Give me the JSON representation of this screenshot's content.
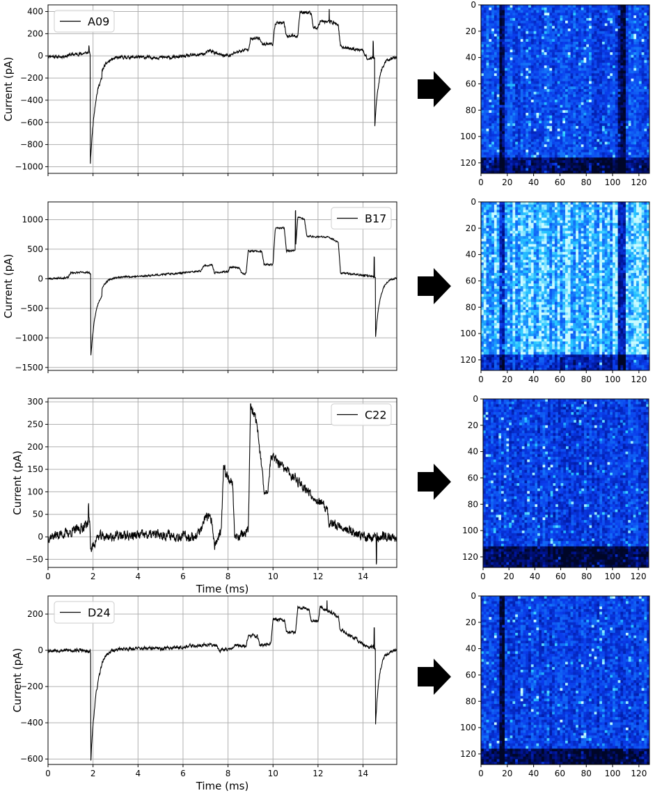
{
  "colors": {
    "trace": "#000000",
    "grid": "#b0b0b0",
    "arrow": "#000000",
    "heatmap_low": "#000a3c",
    "heatmap_mid": "#0a3cf0",
    "heatmap_high": "#3cdcff"
  },
  "arrow_icon": "right-arrow-icon",
  "chart_data": [
    {
      "id": "A09",
      "type": "line",
      "legend": "A09",
      "legend_position": "upper-left",
      "xlabel": "",
      "ylabel": "Current (pA)",
      "xlim": [
        0,
        15.5
      ],
      "ylim": [
        -1060,
        460
      ],
      "xticks": [
        0,
        2,
        4,
        6,
        8,
        10,
        12,
        14
      ],
      "show_xtick_labels": false,
      "yticks": [
        -1000,
        -800,
        -600,
        -400,
        -200,
        0,
        200,
        400
      ],
      "ytick_labels": [
        "−1000",
        "−800",
        "−600",
        "−400",
        "−200",
        "0",
        "200",
        "400"
      ],
      "grid": true,
      "noise": 12,
      "segments": [
        [
          0.0,
          0
        ],
        [
          0.5,
          -10
        ],
        [
          1.0,
          10
        ],
        [
          1.5,
          20
        ],
        [
          1.8,
          30
        ],
        [
          2.4,
          -80
        ],
        [
          2.4,
          -15
        ],
        [
          3.0,
          -10
        ],
        [
          5.5,
          -15
        ],
        [
          6.5,
          5
        ],
        [
          7.0,
          20
        ],
        [
          7.2,
          50
        ],
        [
          7.6,
          10
        ],
        [
          8.1,
          0
        ],
        [
          8.3,
          30
        ],
        [
          8.9,
          60
        ],
        [
          9.0,
          150
        ],
        [
          9.4,
          160
        ],
        [
          9.5,
          110
        ],
        [
          10.0,
          110
        ],
        [
          10.1,
          300
        ],
        [
          10.5,
          290
        ],
        [
          10.6,
          180
        ],
        [
          11.1,
          180
        ],
        [
          11.2,
          400
        ],
        [
          11.7,
          380
        ],
        [
          11.8,
          250
        ],
        [
          12.0,
          260
        ],
        [
          12.1,
          320
        ],
        [
          12.7,
          300
        ],
        [
          12.9,
          280
        ],
        [
          13.0,
          80
        ],
        [
          14.0,
          50
        ],
        [
          14.2,
          -30
        ],
        [
          14.4,
          -20
        ],
        [
          15.5,
          -10
        ]
      ],
      "spikes": [
        {
          "t": 1.88,
          "depth": -990,
          "tau": 0.25
        },
        {
          "t": 14.52,
          "depth": -630,
          "tau": 0.18
        }
      ],
      "blips": [
        {
          "t": 12.5,
          "v": 420
        },
        {
          "t": 14.45,
          "v": 130
        },
        {
          "t": 1.82,
          "v": 80
        }
      ],
      "seed": 11
    },
    {
      "id": "B17",
      "type": "line",
      "legend": "B17",
      "legend_position": "upper-right",
      "xlabel": "",
      "ylabel": "Current (pA)",
      "xlim": [
        0,
        15.5
      ],
      "ylim": [
        -1550,
        1300
      ],
      "xticks": [
        0,
        2,
        4,
        6,
        8,
        10,
        12,
        14
      ],
      "show_xtick_labels": false,
      "yticks": [
        -1500,
        -1000,
        -500,
        0,
        500,
        1000
      ],
      "ytick_labels": [
        "−1500",
        "−1000",
        "−500",
        "0",
        "500",
        "1000"
      ],
      "grid": true,
      "noise": 12,
      "segments": [
        [
          0.0,
          0
        ],
        [
          0.9,
          20
        ],
        [
          1.0,
          100
        ],
        [
          1.8,
          110
        ],
        [
          2.4,
          -100
        ],
        [
          2.4,
          30
        ],
        [
          4.0,
          40
        ],
        [
          6.0,
          100
        ],
        [
          6.8,
          130
        ],
        [
          6.9,
          220
        ],
        [
          7.3,
          230
        ],
        [
          7.4,
          100
        ],
        [
          8.0,
          120
        ],
        [
          8.1,
          200
        ],
        [
          8.5,
          190
        ],
        [
          8.6,
          90
        ],
        [
          8.8,
          90
        ],
        [
          8.9,
          470
        ],
        [
          9.5,
          460
        ],
        [
          9.6,
          240
        ],
        [
          10.0,
          240
        ],
        [
          10.1,
          850
        ],
        [
          10.5,
          860
        ],
        [
          10.6,
          470
        ],
        [
          11.0,
          480
        ],
        [
          11.1,
          1050
        ],
        [
          11.4,
          1000
        ],
        [
          11.5,
          720
        ],
        [
          12.5,
          700
        ],
        [
          12.9,
          620
        ],
        [
          13.0,
          100
        ],
        [
          14.0,
          60
        ],
        [
          14.4,
          40
        ],
        [
          14.5,
          20
        ],
        [
          15.5,
          20
        ]
      ],
      "spikes": [
        {
          "t": 1.9,
          "depth": -1400,
          "tau": 0.25
        },
        {
          "t": 14.55,
          "depth": -1050,
          "tau": 0.2
        }
      ],
      "blips": [
        {
          "t": 11.0,
          "v": 1150
        },
        {
          "t": 14.5,
          "v": 360
        }
      ],
      "seed": 23
    },
    {
      "id": "C22",
      "type": "line",
      "legend": "C22",
      "legend_position": "upper-right",
      "xlabel": "Time (ms)",
      "ylabel": "Current (pA)",
      "xlim": [
        0,
        15.5
      ],
      "ylim": [
        -68,
        308
      ],
      "xticks": [
        0,
        2,
        4,
        6,
        8,
        10,
        12,
        14
      ],
      "xtick_labels": [
        "0",
        "2",
        "4",
        "6",
        "8",
        "10",
        "12",
        "14"
      ],
      "show_xtick_labels": true,
      "yticks": [
        -50,
        0,
        50,
        100,
        150,
        200,
        250,
        300
      ],
      "ytick_labels": [
        "−50",
        "0",
        "50",
        "100",
        "150",
        "200",
        "250",
        "300"
      ],
      "grid": true,
      "noise": 9,
      "segments": [
        [
          0.0,
          0
        ],
        [
          1.0,
          10
        ],
        [
          1.5,
          20
        ],
        [
          1.85,
          35
        ],
        [
          1.9,
          -30
        ],
        [
          2.2,
          0
        ],
        [
          5.0,
          5
        ],
        [
          6.5,
          0
        ],
        [
          6.9,
          20
        ],
        [
          7.0,
          50
        ],
        [
          7.3,
          30
        ],
        [
          7.4,
          -20
        ],
        [
          7.7,
          10
        ],
        [
          7.8,
          150
        ],
        [
          8.2,
          120
        ],
        [
          8.3,
          0
        ],
        [
          8.9,
          10
        ],
        [
          9.0,
          290
        ],
        [
          9.3,
          250
        ],
        [
          9.5,
          150
        ],
        [
          9.6,
          100
        ],
        [
          9.8,
          110
        ],
        [
          9.9,
          180
        ],
        [
          10.5,
          150
        ],
        [
          11.0,
          130
        ],
        [
          12.0,
          80
        ],
        [
          12.4,
          60
        ],
        [
          12.5,
          30
        ],
        [
          13.2,
          20
        ],
        [
          14.0,
          0
        ],
        [
          15.5,
          0
        ]
      ],
      "spikes": [],
      "blips": [
        {
          "t": 1.8,
          "v": 70
        },
        {
          "t": 14.6,
          "v": -60
        }
      ],
      "seed": 37
    },
    {
      "id": "D24",
      "type": "line",
      "legend": "D24",
      "legend_position": "upper-left",
      "xlabel": "Time (ms)",
      "ylabel": "Current (pA)",
      "xlim": [
        0,
        15.5
      ],
      "ylim": [
        -630,
        300
      ],
      "xticks": [
        0,
        2,
        4,
        6,
        8,
        10,
        12,
        14
      ],
      "xtick_labels": [
        "0",
        "2",
        "4",
        "6",
        "8",
        "10",
        "12",
        "14"
      ],
      "show_xtick_labels": true,
      "yticks": [
        -600,
        -400,
        -200,
        0,
        200
      ],
      "ytick_labels": [
        "−600",
        "−400",
        "−200",
        "0",
        "200"
      ],
      "grid": true,
      "noise": 8,
      "segments": [
        [
          0.0,
          0
        ],
        [
          1.5,
          0
        ],
        [
          1.8,
          -10
        ],
        [
          2.3,
          -10
        ],
        [
          2.4,
          10
        ],
        [
          5.0,
          10
        ],
        [
          6.0,
          20
        ],
        [
          7.0,
          30
        ],
        [
          7.5,
          30
        ],
        [
          7.6,
          0
        ],
        [
          8.2,
          10
        ],
        [
          8.3,
          30
        ],
        [
          8.8,
          20
        ],
        [
          8.9,
          80
        ],
        [
          9.3,
          80
        ],
        [
          9.4,
          30
        ],
        [
          9.9,
          30
        ],
        [
          10.0,
          170
        ],
        [
          10.5,
          170
        ],
        [
          10.6,
          100
        ],
        [
          11.0,
          100
        ],
        [
          11.1,
          240
        ],
        [
          11.6,
          230
        ],
        [
          11.7,
          160
        ],
        [
          12.0,
          160
        ],
        [
          12.1,
          240
        ],
        [
          12.7,
          200
        ],
        [
          12.9,
          180
        ],
        [
          13.0,
          110
        ],
        [
          13.5,
          80
        ],
        [
          14.0,
          30
        ],
        [
          14.6,
          10
        ],
        [
          15.5,
          0
        ]
      ],
      "spikes": [
        {
          "t": 1.9,
          "depth": -600,
          "tau": 0.25
        },
        {
          "t": 14.55,
          "depth": -430,
          "tau": 0.18
        }
      ],
      "blips": [
        {
          "t": 12.4,
          "v": 270
        },
        {
          "t": 14.5,
          "v": 120
        }
      ],
      "seed": 53
    },
    {
      "id": "heatmap-A09",
      "type": "heatmap",
      "xlim": [
        0,
        128
      ],
      "ylim": [
        0,
        128
      ],
      "xticks": [
        0,
        20,
        40,
        60,
        80,
        100,
        120
      ],
      "yticks": [
        0,
        20,
        40,
        60,
        80,
        100,
        120
      ],
      "brightness": 0.55,
      "dark_columns": [
        16,
        107
      ],
      "dark_band_start_row": 116,
      "seed": 101
    },
    {
      "id": "heatmap-B17",
      "type": "heatmap",
      "xlim": [
        0,
        128
      ],
      "ylim": [
        0,
        128
      ],
      "xticks": [
        0,
        20,
        40,
        60,
        80,
        100,
        120
      ],
      "yticks": [
        0,
        20,
        40,
        60,
        80,
        100,
        120
      ],
      "brightness": 0.85,
      "dark_columns": [
        16,
        107
      ],
      "dark_band_start_row": 116,
      "seed": 202
    },
    {
      "id": "heatmap-C22",
      "type": "heatmap",
      "xlim": [
        0,
        128
      ],
      "ylim": [
        0,
        128
      ],
      "xticks": [
        0,
        20,
        40,
        60,
        80,
        100,
        120
      ],
      "yticks": [
        0,
        20,
        40,
        60,
        80,
        100,
        120
      ],
      "brightness": 0.5,
      "dark_columns": [],
      "dark_band_start_row": 112,
      "seed": 303
    },
    {
      "id": "heatmap-D24",
      "type": "heatmap",
      "xlim": [
        0,
        128
      ],
      "ylim": [
        0,
        128
      ],
      "xticks": [
        0,
        20,
        40,
        60,
        80,
        100,
        120
      ],
      "yticks": [
        0,
        20,
        40,
        60,
        80,
        100,
        120
      ],
      "brightness": 0.5,
      "dark_columns": [
        16
      ],
      "dark_band_start_row": 116,
      "seed": 404
    }
  ]
}
